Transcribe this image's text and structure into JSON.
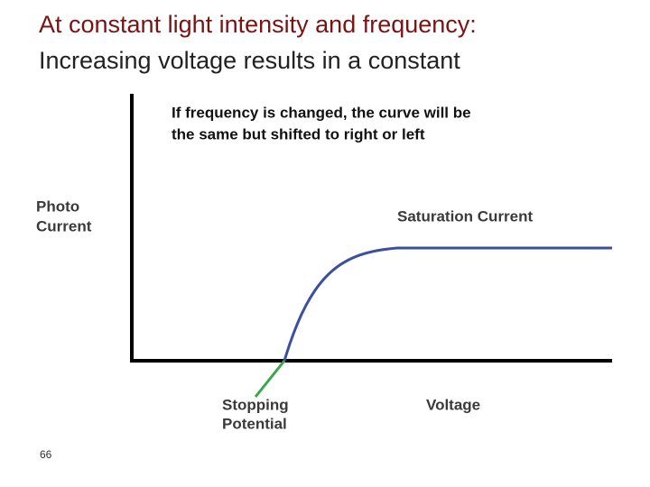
{
  "slide": {
    "title": [
      "At constant light intensity and frequency:",
      "Increasing voltage results in a constant"
    ],
    "page_number": "66"
  },
  "diagram": {
    "note": [
      "If frequency is changed, the curve will be",
      "the same but shifted to right or left"
    ],
    "y_axis_label": [
      "Photo",
      "Current"
    ],
    "x_axis_label": "Voltage",
    "saturation_label": "Saturation Current",
    "stopping_label": [
      "Stopping",
      "Potential"
    ]
  }
}
